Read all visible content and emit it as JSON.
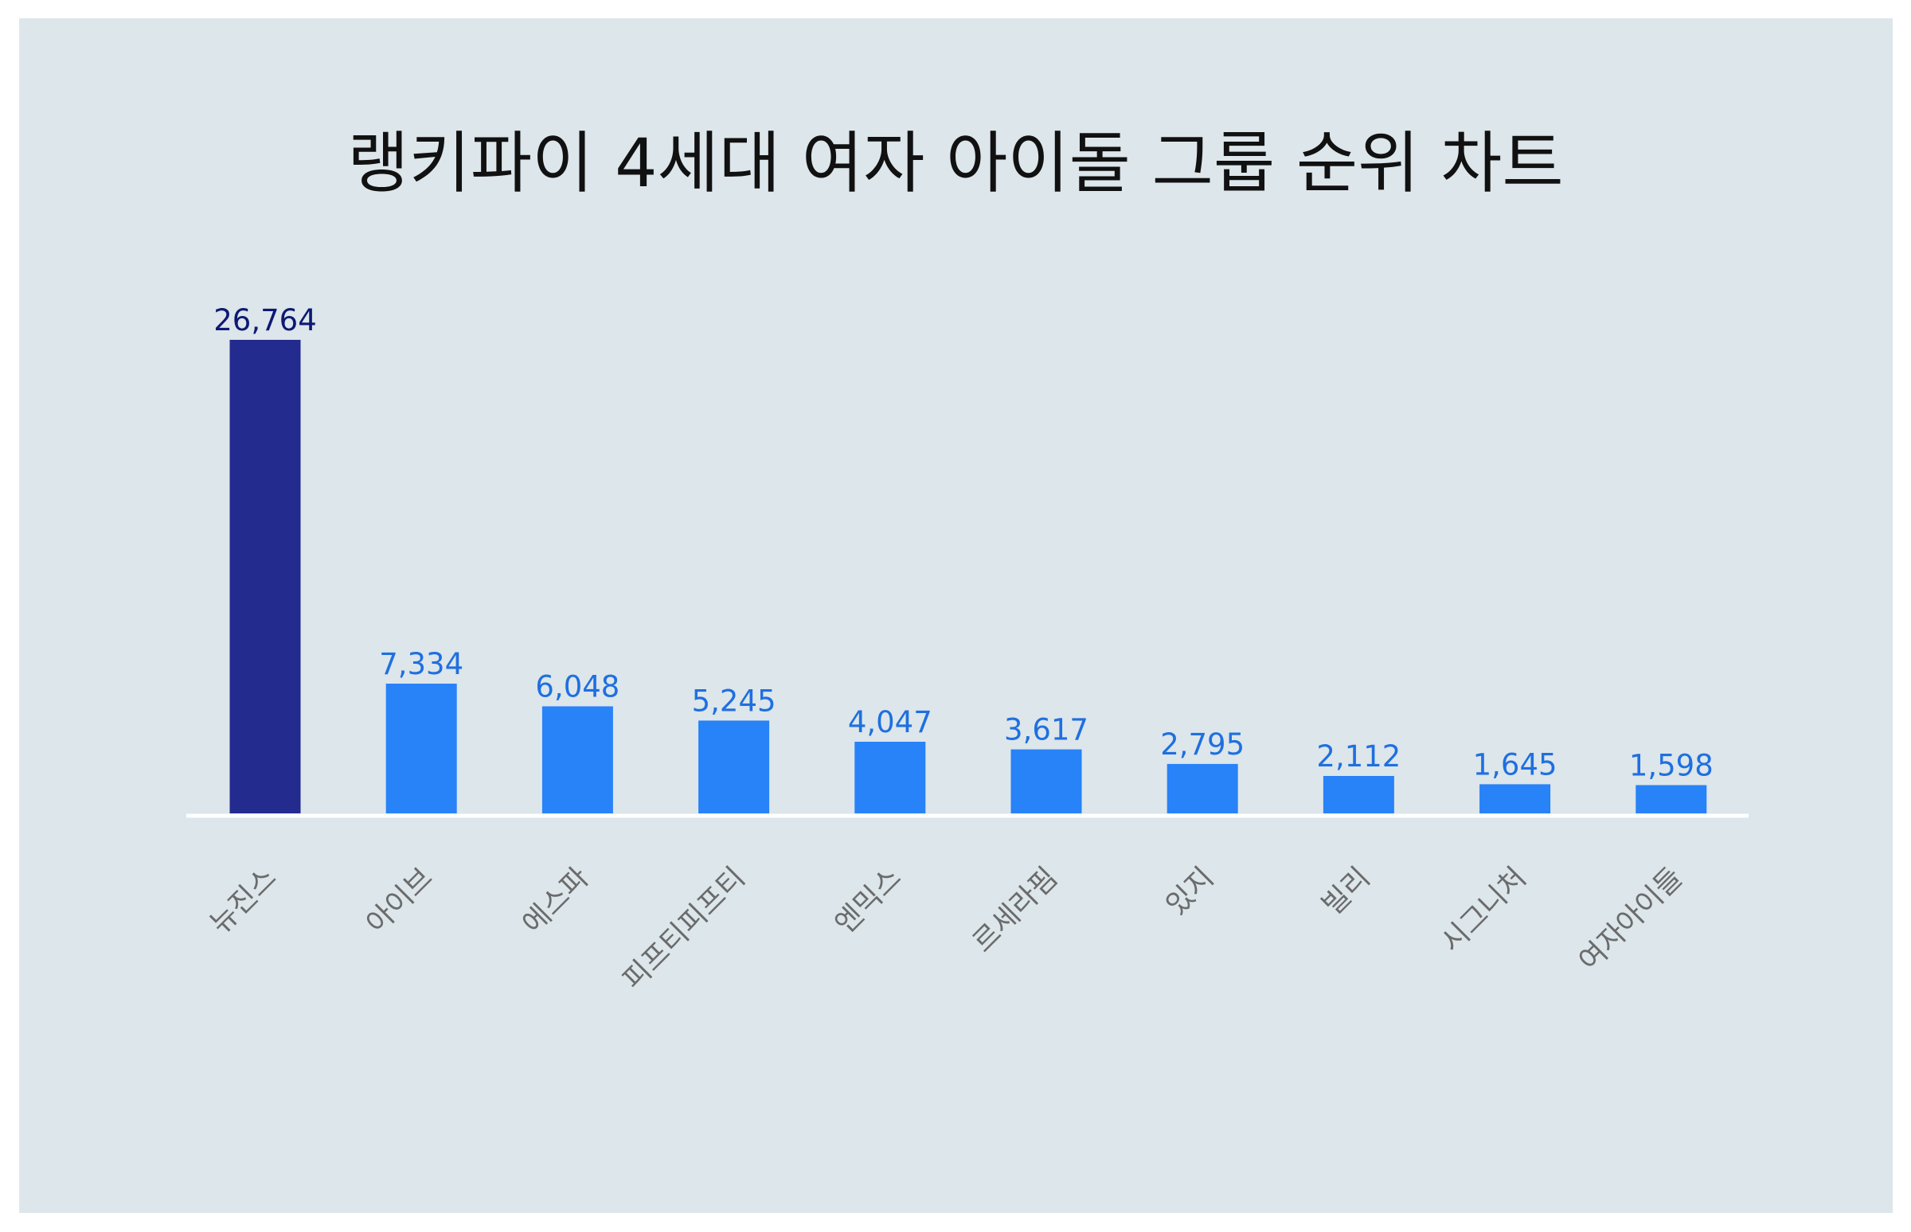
{
  "chart_data": {
    "type": "bar",
    "title": "랭키파이 4세대 여자 아이돌 그룹 순위 차트",
    "categories": [
      "뉴진스",
      "아이브",
      "에스파",
      "피프티피프티",
      "엔믹스",
      "르세라핌",
      "있지",
      "빌리",
      "시그니처",
      "여자아이들"
    ],
    "values": [
      26764,
      7334,
      6048,
      5245,
      4047,
      3617,
      2795,
      2112,
      1645,
      1598
    ],
    "value_labels": [
      "26,764",
      "7,334",
      "6,048",
      "5,245",
      "4,047",
      "3,617",
      "2,795",
      "2,112",
      "1,645",
      "1,598"
    ],
    "xlabel": "",
    "ylabel": "",
    "ylim": [
      0,
      26764
    ],
    "grid": false,
    "legend": "none"
  },
  "colors": {
    "background": "#dce6eb",
    "highlight_bar": "#232b8f",
    "bar": "#2882f8",
    "highlight_label": "#0d1a73",
    "label": "#1f6fe0",
    "baseline": "#ffffff"
  }
}
